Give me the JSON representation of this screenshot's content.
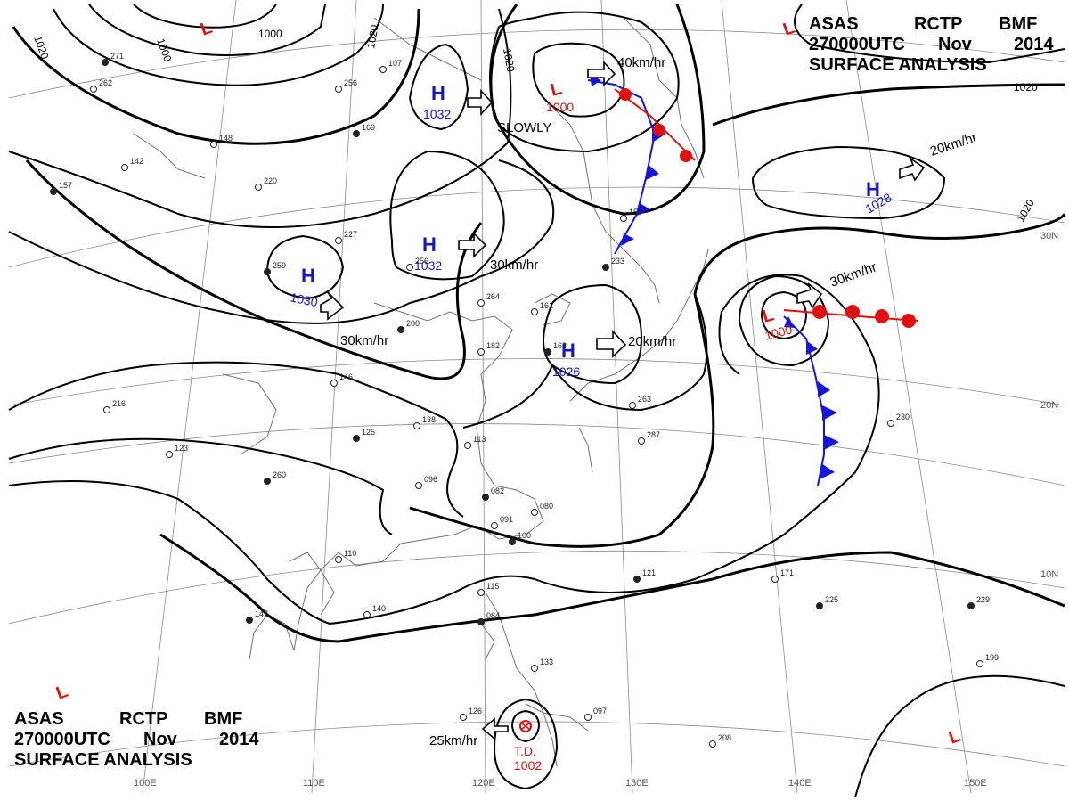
{
  "header": {
    "agency": "ASAS",
    "station": "RCTP",
    "code": "BMF",
    "time": "270000UTC",
    "month": "Nov",
    "year": "2014",
    "title": "SURFACE ANALYSIS"
  },
  "isobars": [
    "1000",
    "1000",
    "1020",
    "1020",
    "1020",
    "1020",
    "1020"
  ],
  "pressure_centers": [
    {
      "type": "H",
      "value": "1032",
      "color": "#1414c8"
    },
    {
      "type": "H",
      "value": "1032",
      "color": "#1414c8"
    },
    {
      "type": "H",
      "value": "1030",
      "color": "#1414c8"
    },
    {
      "type": "H",
      "value": "1028",
      "color": "#1414c8"
    },
    {
      "type": "H",
      "value": "1026",
      "color": "#1414c8"
    },
    {
      "type": "L",
      "value": "1000",
      "color": "#e01010"
    },
    {
      "type": "L",
      "value": "1000",
      "color": "#e01010"
    },
    {
      "type": "L",
      "value": "",
      "color": "#e01010"
    },
    {
      "type": "L",
      "value": "",
      "color": "#e01010"
    },
    {
      "type": "L",
      "value": "",
      "color": "#e01010"
    },
    {
      "type": "L",
      "value": "",
      "color": "#e01010"
    }
  ],
  "tropical_depression": {
    "label": "T.D.",
    "pressure": "1002",
    "color": "#e01010"
  },
  "motions": [
    "40km/hr",
    "SLOWLY",
    "20km/hr",
    "30km/hr",
    "30km/hr",
    "30km/hr",
    "20km/hr",
    "25km/hr"
  ],
  "lat_labels": [
    "30N",
    "20N",
    "10N"
  ],
  "lon_labels": [
    "100E",
    "110E",
    "120E",
    "130E",
    "140E",
    "150E"
  ],
  "station_obs": [
    "271",
    "262",
    "256",
    "169",
    "148",
    "142",
    "157",
    "220",
    "227",
    "259",
    "256",
    "264",
    "200",
    "182",
    "161",
    "163",
    "146",
    "138",
    "125",
    "113",
    "096",
    "082",
    "080",
    "091",
    "100",
    "110",
    "140",
    "147",
    "126",
    "097",
    "084",
    "133",
    "115",
    "121",
    "171",
    "230",
    "225",
    "208",
    "199",
    "229",
    "216",
    "123",
    "260",
    "287",
    "263",
    "233",
    "150",
    "107"
  ],
  "colors": {
    "front_cold": "#1414dc",
    "front_warm": "#e01010",
    "isobar": "#000000",
    "coast": "#666666"
  }
}
